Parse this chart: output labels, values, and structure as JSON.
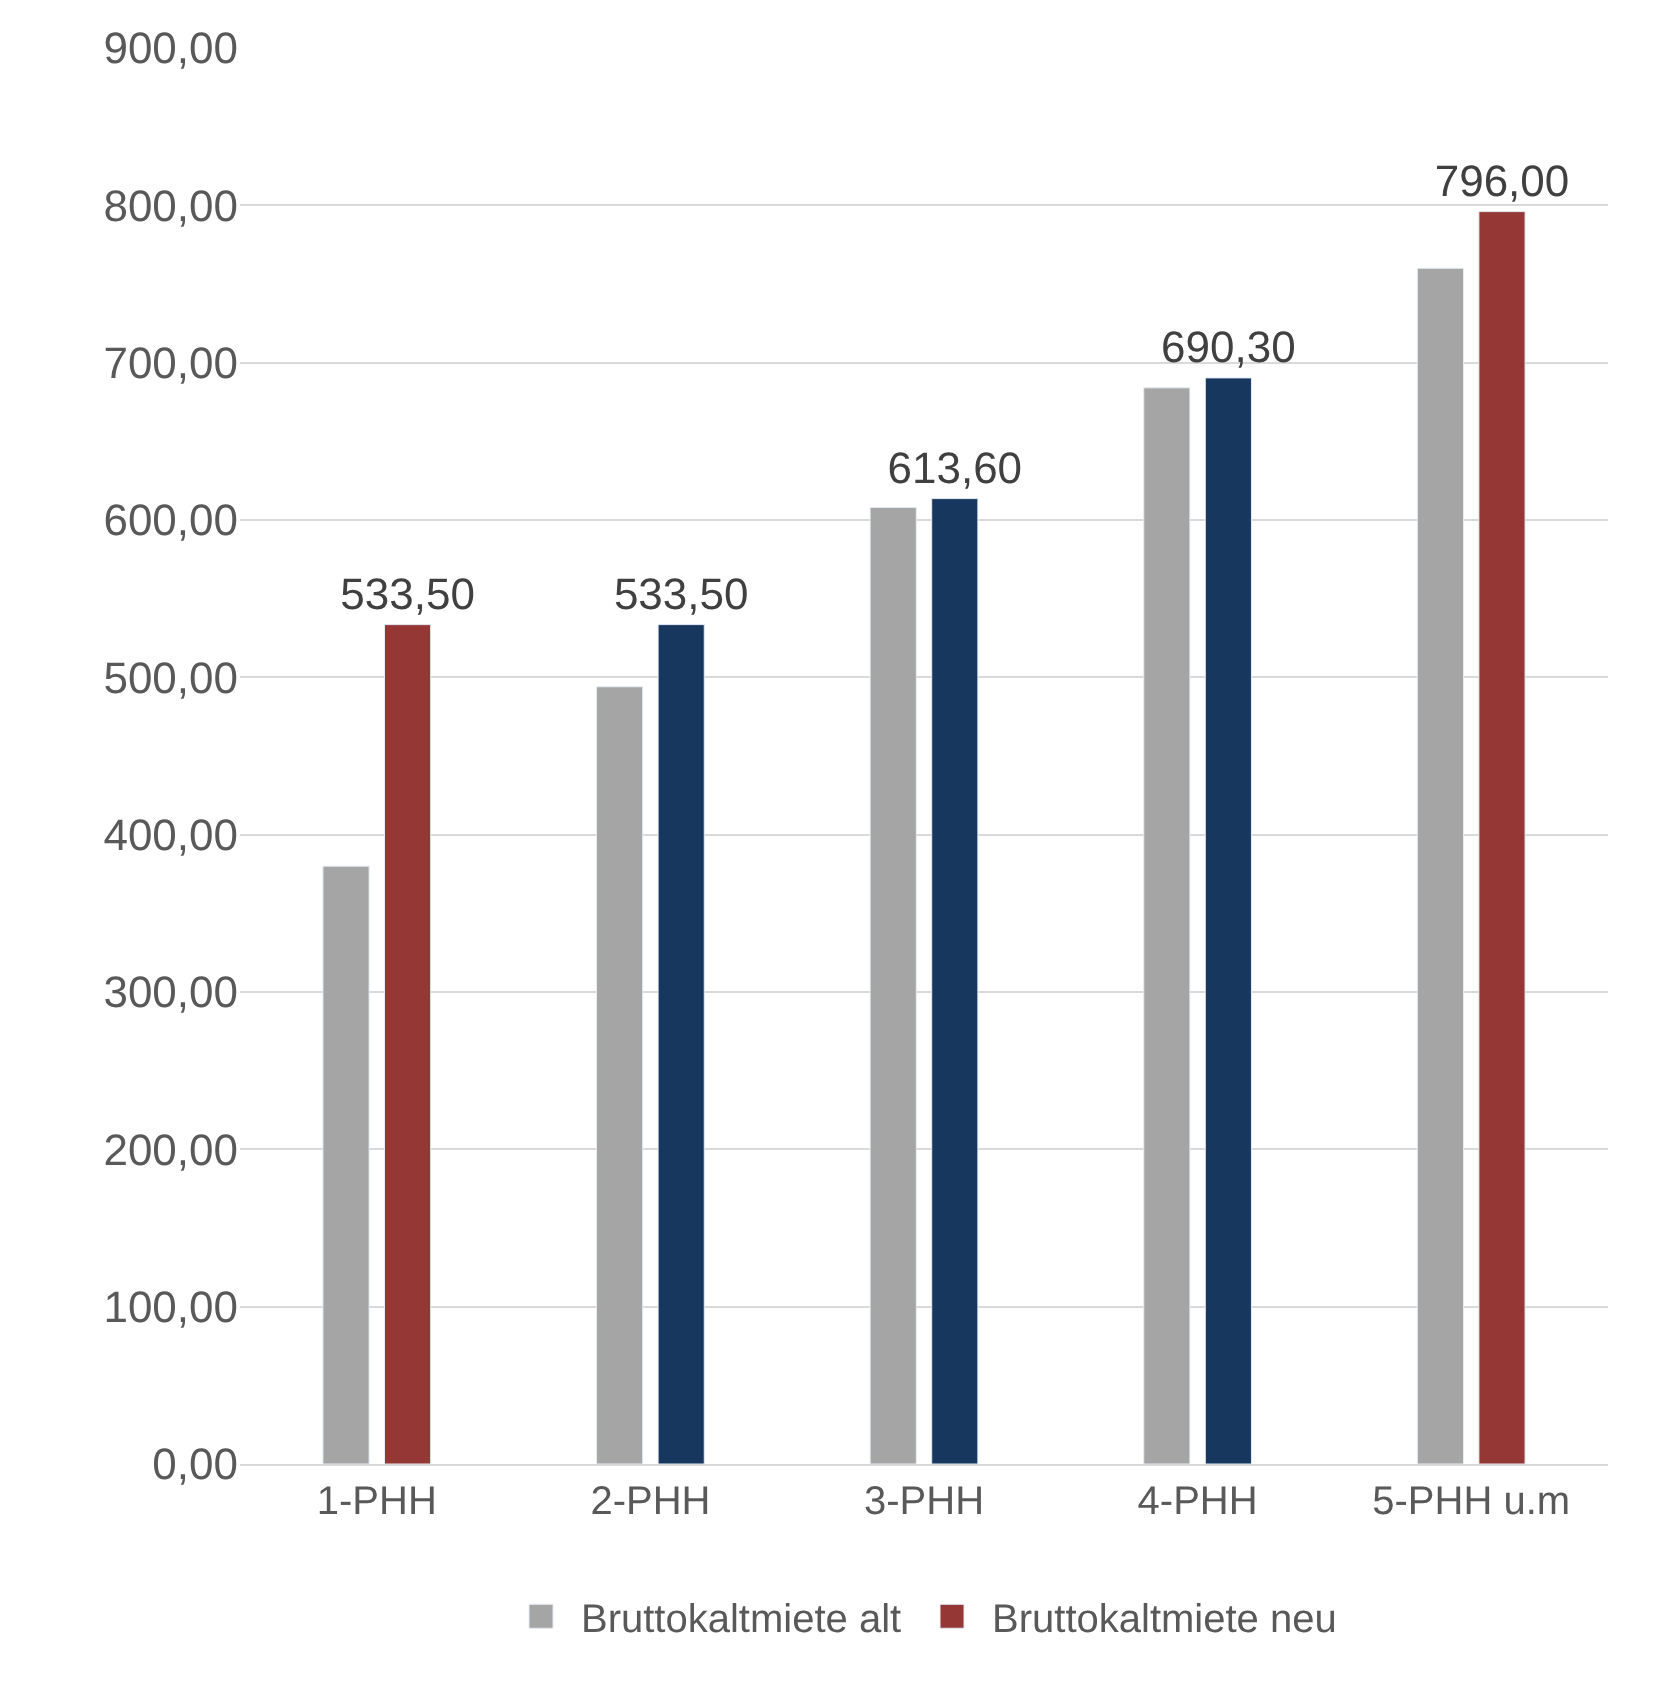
{
  "chart_data": {
    "type": "bar",
    "categories": [
      "1-PHH",
      "2-PHH",
      "3-PHH",
      "4-PHH",
      "5-PHH u.m"
    ],
    "series": [
      {
        "name": "Bruttokaltmiete alt",
        "color": "#a5a5a5",
        "values": [
          380,
          494,
          608,
          684,
          760
        ]
      },
      {
        "name": "Bruttokaltmiete neu",
        "color": "#17375e",
        "colors": [
          "#953735",
          "#17375e",
          "#17375e",
          "#17375e",
          "#953735"
        ],
        "values": [
          533.5,
          533.5,
          613.6,
          690.3,
          796
        ],
        "value_labels": [
          "533,50",
          "533,50",
          "613,60",
          "690,30",
          "796,00"
        ]
      }
    ],
    "ylim": [
      0,
      900
    ],
    "yticks": [
      {
        "value": 0,
        "label": "0,00"
      },
      {
        "value": 100,
        "label": "100,00"
      },
      {
        "value": 200,
        "label": "200,00"
      },
      {
        "value": 300,
        "label": "300,00"
      },
      {
        "value": 400,
        "label": "400,00"
      },
      {
        "value": 500,
        "label": "500,00"
      },
      {
        "value": 600,
        "label": "600,00"
      },
      {
        "value": 700,
        "label": "700,00"
      },
      {
        "value": 800,
        "label": "800,00"
      },
      {
        "value": 900,
        "label": "900,00"
      }
    ],
    "grid": "y",
    "legend": "bottom"
  }
}
